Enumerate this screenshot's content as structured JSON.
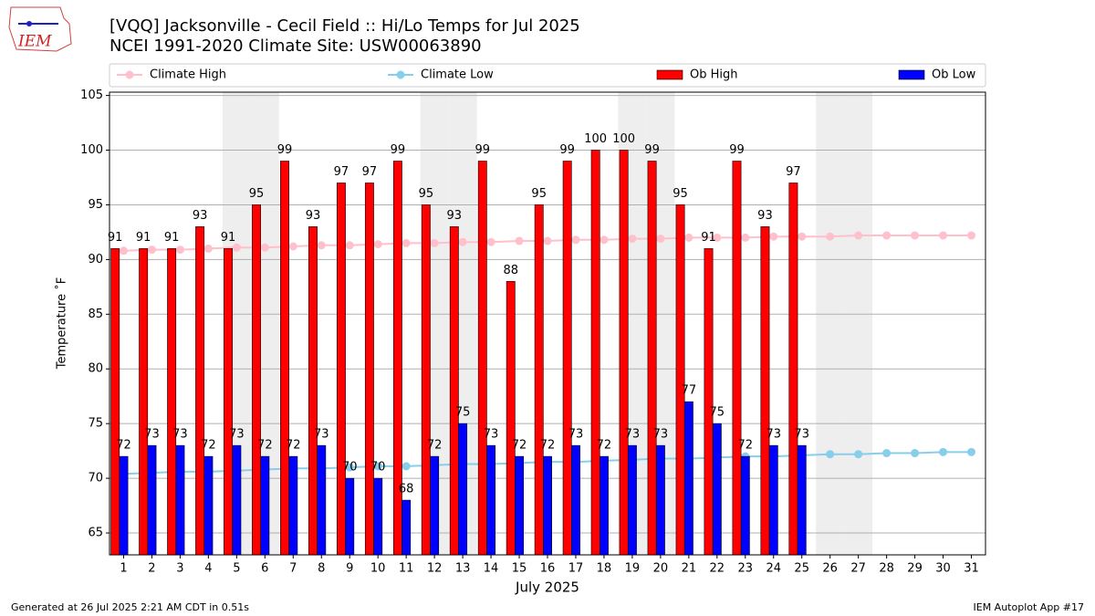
{
  "chart_data": {
    "type": "bar",
    "title": "[VQQ] Jacksonville - Cecil Field :: Hi/Lo Temps for Jul 2025",
    "subtitle": "NCEI 1991-2020 Climate Site: USW00063890",
    "logo_text": "IEM",
    "x_label": "July 2025",
    "y_label": "Temperature ˚F",
    "footer_left": "Generated at 26 Jul 2025 2:21 AM CDT in 0.51s",
    "footer_right": "IEM Autoplot App #17",
    "categories": [
      "1",
      "2",
      "3",
      "4",
      "5",
      "6",
      "7",
      "8",
      "9",
      "10",
      "11",
      "12",
      "13",
      "14",
      "15",
      "16",
      "17",
      "18",
      "19",
      "20",
      "21",
      "22",
      "23",
      "24",
      "25",
      "26",
      "27",
      "28",
      "29",
      "30",
      "31"
    ],
    "shaded_categories": [
      "5",
      "6",
      "12",
      "13",
      "19",
      "20",
      "26",
      "27"
    ],
    "series": [
      {
        "name": "Climate High",
        "type": "line",
        "color": "#ffc0cb",
        "values": [
          90.8,
          90.9,
          90.9,
          91.0,
          91.1,
          91.1,
          91.2,
          91.3,
          91.3,
          91.4,
          91.5,
          91.5,
          91.6,
          91.6,
          91.7,
          91.7,
          91.8,
          91.8,
          91.9,
          91.9,
          92.0,
          92.0,
          92.0,
          92.1,
          92.1,
          92.1,
          92.2,
          92.2,
          92.2,
          92.2,
          92.2
        ]
      },
      {
        "name": "Climate Low",
        "type": "line",
        "color": "#87ceeb",
        "values": [
          70.4,
          70.5,
          70.6,
          70.6,
          70.7,
          70.8,
          70.9,
          70.9,
          71.0,
          71.1,
          71.1,
          71.2,
          71.3,
          71.3,
          71.4,
          71.5,
          71.5,
          71.6,
          71.7,
          71.8,
          71.8,
          71.9,
          72.0,
          72.0,
          72.1,
          72.2,
          72.2,
          72.3,
          72.3,
          72.4,
          72.4
        ]
      },
      {
        "name": "Ob High",
        "type": "bar",
        "color": "#ff0000",
        "values": [
          91,
          91,
          91,
          93,
          91,
          95,
          99,
          93,
          97,
          97,
          99,
          95,
          93,
          99,
          88,
          95,
          99,
          100,
          100,
          99,
          95,
          91,
          99,
          93,
          97,
          null,
          null,
          null,
          null,
          null,
          null
        ]
      },
      {
        "name": "Ob Low",
        "type": "bar",
        "color": "#0000ff",
        "values": [
          72,
          73,
          73,
          72,
          73,
          72,
          72,
          73,
          70,
          70,
          68,
          72,
          75,
          73,
          72,
          72,
          73,
          72,
          73,
          73,
          77,
          75,
          72,
          73,
          73,
          null,
          null,
          null,
          null,
          null,
          null
        ]
      }
    ],
    "ylim": [
      63,
      105.3
    ],
    "yticks": [
      65,
      70,
      75,
      80,
      85,
      90,
      95,
      100,
      105
    ],
    "grid": true
  }
}
